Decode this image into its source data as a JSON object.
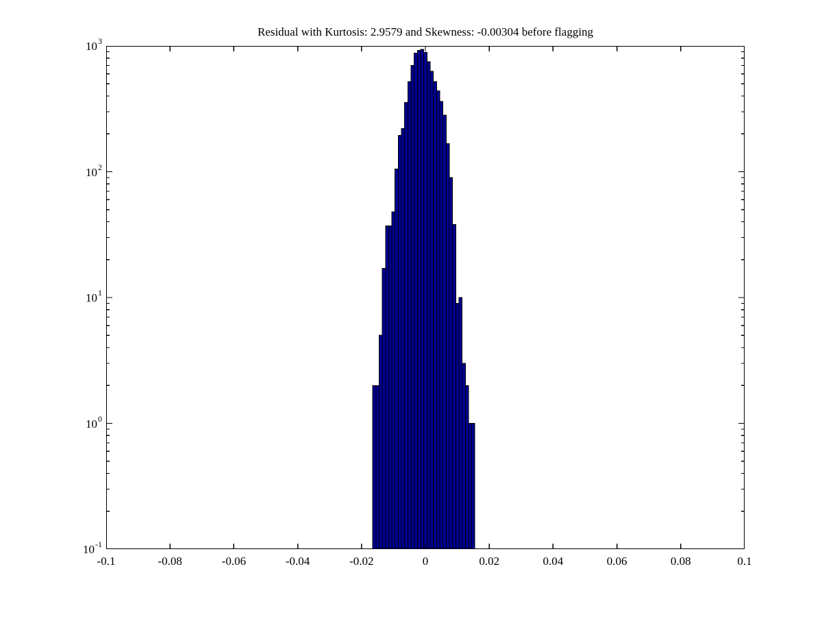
{
  "figure": {
    "background_color": "#ffffff",
    "axes_color": "#000000",
    "text_color": "#000000"
  },
  "chart_data": {
    "type": "bar",
    "subtype": "histogram",
    "title": "Residual with Kurtosis: 2.9579 and Skewness: -0.00304 before flagging",
    "xlabel": "",
    "ylabel": "",
    "legend": null,
    "grid": false,
    "bar_color": "#000090",
    "bar_edge_color": "#000000",
    "x_axis": {
      "min": -0.1,
      "max": 0.1,
      "scale": "linear",
      "ticks": [
        {
          "value": -0.1,
          "label": "-0.1"
        },
        {
          "value": -0.08,
          "label": "-0.08"
        },
        {
          "value": -0.06,
          "label": "-0.06"
        },
        {
          "value": -0.04,
          "label": "-0.04"
        },
        {
          "value": -0.02,
          "label": "-0.02"
        },
        {
          "value": 0,
          "label": "0"
        },
        {
          "value": 0.02,
          "label": "0.02"
        },
        {
          "value": 0.04,
          "label": "0.04"
        },
        {
          "value": 0.06,
          "label": "0.06"
        },
        {
          "value": 0.08,
          "label": "0.08"
        },
        {
          "value": 0.1,
          "label": "0.1"
        }
      ]
    },
    "y_axis": {
      "scale": "log",
      "min_exponent": -1,
      "max_exponent": 3,
      "tick_base": "10",
      "tick_exponents": [
        3,
        2,
        1,
        0,
        -1
      ],
      "minor_tick_multiples": [
        2,
        3,
        4,
        5,
        6,
        7,
        8,
        9
      ]
    },
    "bin_width": 0.001,
    "bin_centers": [
      -0.016,
      -0.015,
      -0.014,
      -0.013,
      -0.012,
      -0.011,
      -0.01,
      -0.009,
      -0.008,
      -0.007,
      -0.006,
      -0.005,
      -0.004,
      -0.003,
      -0.002,
      -0.001,
      0.0,
      0.001,
      0.002,
      0.003,
      0.004,
      0.005,
      0.006,
      0.007,
      0.008,
      0.009,
      0.01,
      0.011,
      0.012,
      0.013,
      0.014,
      0.015
    ],
    "counts": [
      2,
      2,
      5,
      17,
      37,
      37,
      48,
      105,
      195,
      220,
      355,
      520,
      700,
      875,
      920,
      940,
      890,
      750,
      630,
      520,
      440,
      363,
      282,
      167,
      90,
      38,
      9,
      10,
      3,
      2,
      1,
      1
    ]
  }
}
